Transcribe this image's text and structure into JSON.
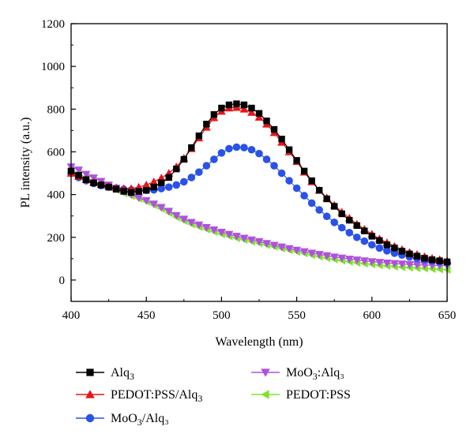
{
  "chart_data": {
    "type": "line",
    "xlabel": "Wavelength (nm)",
    "ylabel": "PL intensity (a.u.)",
    "xlim": [
      400,
      650
    ],
    "ylim": [
      -100,
      1200
    ],
    "xticks": [
      400,
      450,
      500,
      550,
      600,
      650
    ],
    "yticks": [
      0,
      200,
      400,
      600,
      800,
      1000,
      1200
    ],
    "grid": false,
    "legend_position": "bottom",
    "series": [
      {
        "name": "Alq",
        "name_sub": "3",
        "name_after": "",
        "color": "#000000",
        "marker": "square",
        "x": [
          400,
          405,
          410,
          415,
          420,
          425,
          430,
          435,
          440,
          445,
          450,
          455,
          460,
          465,
          470,
          475,
          480,
          485,
          490,
          495,
          500,
          505,
          510,
          515,
          520,
          525,
          530,
          535,
          540,
          545,
          550,
          555,
          560,
          565,
          570,
          575,
          580,
          585,
          590,
          595,
          600,
          605,
          610,
          615,
          620,
          625,
          630,
          635,
          640,
          645,
          650
        ],
        "y": [
          510,
          490,
          470,
          455,
          445,
          435,
          425,
          415,
          410,
          415,
          420,
          435,
          455,
          480,
          520,
          565,
          620,
          675,
          730,
          775,
          805,
          820,
          825,
          820,
          805,
          780,
          745,
          705,
          660,
          610,
          560,
          510,
          465,
          420,
          380,
          345,
          310,
          280,
          255,
          230,
          205,
          185,
          165,
          150,
          135,
          122,
          112,
          102,
          95,
          90,
          85
        ]
      },
      {
        "name": "PEDOT:PSS/Alq",
        "name_sub": "3",
        "name_after": "",
        "color": "#e8141a",
        "marker": "triangle-up",
        "x": [
          400,
          405,
          410,
          415,
          420,
          425,
          430,
          435,
          440,
          445,
          450,
          455,
          460,
          465,
          470,
          475,
          480,
          485,
          490,
          495,
          500,
          505,
          510,
          515,
          520,
          525,
          530,
          535,
          540,
          545,
          550,
          555,
          560,
          565,
          570,
          575,
          580,
          585,
          590,
          595,
          600,
          605,
          610,
          615,
          620,
          625,
          630,
          635,
          640,
          645,
          650
        ],
        "y": [
          500,
          485,
          470,
          458,
          448,
          440,
          432,
          428,
          428,
          435,
          445,
          460,
          478,
          500,
          530,
          570,
          615,
          665,
          715,
          760,
          790,
          805,
          808,
          800,
          785,
          762,
          730,
          690,
          645,
          600,
          555,
          505,
          460,
          420,
          385,
          350,
          318,
          290,
          262,
          238,
          215,
          193,
          175,
          158,
          143,
          130,
          120,
          110,
          102,
          96,
          90
        ]
      },
      {
        "name": "MoO",
        "name_sub": "3",
        "name_after": "/Alq₃",
        "color": "#2a52e8",
        "marker": "circle",
        "x": [
          400,
          405,
          410,
          415,
          420,
          425,
          430,
          435,
          440,
          445,
          450,
          455,
          460,
          465,
          470,
          475,
          480,
          485,
          490,
          495,
          500,
          505,
          510,
          515,
          520,
          525,
          530,
          535,
          540,
          545,
          550,
          555,
          560,
          565,
          570,
          575,
          580,
          585,
          590,
          595,
          600,
          605,
          610,
          615,
          620,
          625,
          630,
          635,
          640,
          645,
          650
        ],
        "y": [
          500,
          480,
          465,
          452,
          442,
          435,
          430,
          425,
          422,
          420,
          420,
          422,
          428,
          435,
          445,
          460,
          480,
          505,
          535,
          565,
          595,
          615,
          622,
          620,
          610,
          592,
          565,
          535,
          500,
          465,
          430,
          395,
          360,
          328,
          298,
          270,
          245,
          222,
          200,
          182,
          165,
          150,
          137,
          126,
          117,
          108,
          101,
          95,
          90,
          85,
          80
        ]
      },
      {
        "name": "MoO",
        "name_sub": "3",
        "name_after": ":Alq₃",
        "color": "#b050e0",
        "marker": "triangle-down",
        "x": [
          400,
          405,
          410,
          415,
          420,
          425,
          430,
          435,
          440,
          445,
          450,
          455,
          460,
          465,
          470,
          475,
          480,
          485,
          490,
          495,
          500,
          505,
          510,
          515,
          520,
          525,
          530,
          535,
          540,
          545,
          550,
          555,
          560,
          565,
          570,
          575,
          580,
          585,
          590,
          595,
          600,
          605,
          610,
          615,
          620,
          625,
          630,
          635,
          640,
          645,
          650
        ],
        "y": [
          530,
          515,
          495,
          478,
          462,
          445,
          430,
          415,
          400,
          385,
          372,
          356,
          340,
          322,
          302,
          285,
          270,
          258,
          246,
          235,
          224,
          214,
          205,
          196,
          188,
          180,
          171,
          163,
          155,
          147,
          140,
          133,
          126,
          120,
          114,
          108,
          103,
          98,
          94,
          90,
          86,
          83,
          80,
          77,
          75,
          73,
          71,
          70,
          69,
          68,
          67
        ]
      },
      {
        "name": "PEDOT:PSS",
        "name_sub": "",
        "name_after": "",
        "color": "#80e030",
        "marker": "triangle-left",
        "x": [
          400,
          405,
          410,
          415,
          420,
          425,
          430,
          435,
          440,
          445,
          450,
          455,
          460,
          465,
          470,
          475,
          480,
          485,
          490,
          495,
          500,
          505,
          510,
          515,
          520,
          525,
          530,
          535,
          540,
          545,
          550,
          555,
          560,
          565,
          570,
          575,
          580,
          585,
          590,
          595,
          600,
          605,
          610,
          615,
          620,
          625,
          630,
          635,
          640,
          645,
          650
        ],
        "y": [
          520,
          500,
          480,
          463,
          448,
          435,
          422,
          408,
          395,
          382,
          368,
          352,
          335,
          315,
          295,
          278,
          262,
          250,
          238,
          227,
          216,
          206,
          197,
          189,
          181,
          173,
          165,
          157,
          149,
          141,
          133,
          126,
          118,
          111,
          104,
          98,
          92,
          87,
          82,
          78,
          74,
          70,
          67,
          64,
          61,
          59,
          57,
          55,
          53,
          51,
          49
        ]
      }
    ]
  }
}
